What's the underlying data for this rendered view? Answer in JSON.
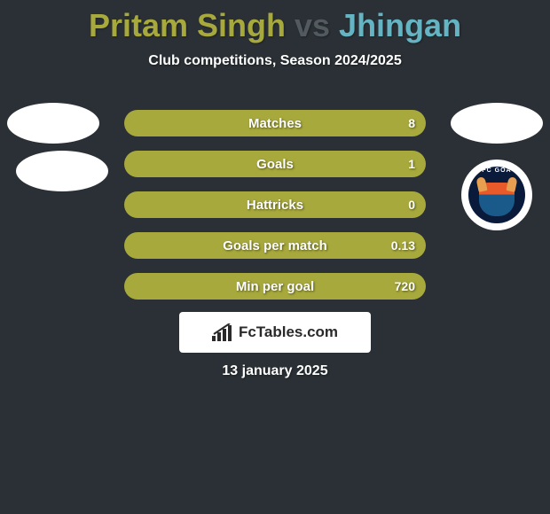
{
  "background_color": "#2a3035",
  "title": {
    "player1": "Pritam Singh",
    "vs": "vs",
    "player2": "Jhingan",
    "player1_color": "#a7a93c",
    "vs_color": "#525a60",
    "player2_color": "#64b4c4"
  },
  "subtitle": "Club competitions, Season 2024/2025",
  "stats": {
    "left_color": "#a7a93c",
    "right_color": "#64b4c4",
    "rows": [
      {
        "label": "Matches",
        "left": "",
        "right": "8",
        "left_pct": 0,
        "right_pct": 100
      },
      {
        "label": "Goals",
        "left": "",
        "right": "1",
        "left_pct": 0,
        "right_pct": 100
      },
      {
        "label": "Hattricks",
        "left": "",
        "right": "0",
        "left_pct": 0,
        "right_pct": 100
      },
      {
        "label": "Goals per match",
        "left": "",
        "right": "0.13",
        "left_pct": 0,
        "right_pct": 100
      },
      {
        "label": "Min per goal",
        "left": "",
        "right": "720",
        "left_pct": 0,
        "right_pct": 100
      }
    ]
  },
  "badges": {
    "left_ellipse_color": "#ffffff",
    "right_ellipse_color": "#ffffff",
    "club_right": {
      "name": "FC Goa",
      "text": "FC GOA",
      "outer_bg": "#ffffff",
      "inner_bg": "#0a1a3a",
      "accent1": "#e85a2a",
      "accent2": "#1a5a8a",
      "horn": "#e8a050"
    }
  },
  "branding": {
    "label": "FcTables.com",
    "bg": "#ffffff",
    "text_color": "#2a2a2a"
  },
  "date": "13 january 2025"
}
